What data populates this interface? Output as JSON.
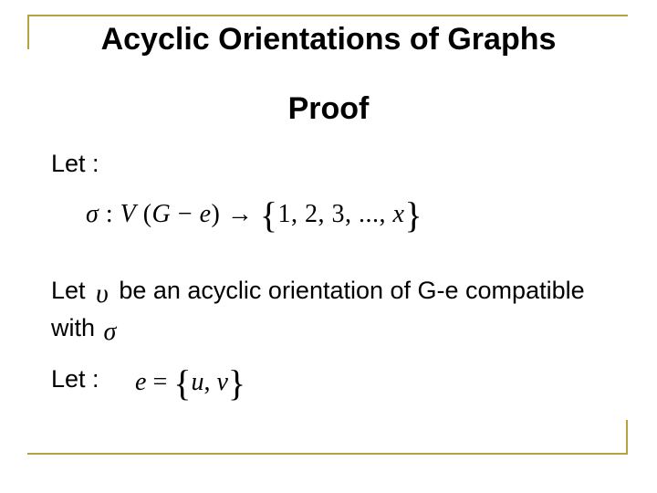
{
  "title": {
    "text": "Acyclic Orientations of Graphs",
    "fontsize": 34,
    "weight": "bold"
  },
  "subtitle": {
    "text": "Proof",
    "fontsize": 34,
    "weight": "bold"
  },
  "body_fontsize": 27,
  "formula_fontsize": 28,
  "line1": {
    "text": "Let :"
  },
  "formula1": {
    "sigma": "σ",
    "colon": ":",
    "V": "V",
    "lparen": "(",
    "G": "G",
    "minus": "−",
    "e": "e",
    "rparen": ")",
    "arrow": "→",
    "lbrace": "{",
    "set_inner": "1, 2, 3, ..., ",
    "x": "x",
    "rbrace": "}"
  },
  "line2": {
    "prefix": "Let ",
    "upsilon": "υ",
    "mid": " be an acyclic orientation of G-e compatible with ",
    "sigma": "σ"
  },
  "line3": {
    "text": "Let :"
  },
  "formula3": {
    "e": "e",
    "eq": "=",
    "lbrace": "{",
    "u": "u",
    "comma": ",",
    "v": "v",
    "rbrace": "}"
  },
  "colors": {
    "text": "#000000",
    "background": "#ffffff",
    "frame": "#b8a23e"
  }
}
